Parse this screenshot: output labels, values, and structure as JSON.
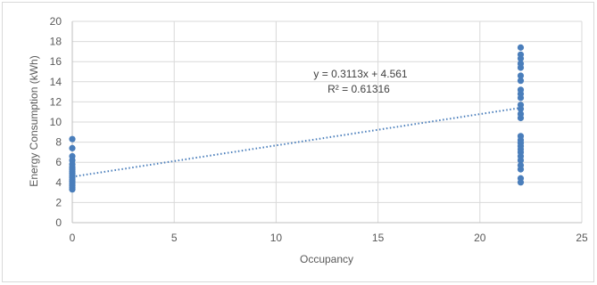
{
  "chart_data": {
    "type": "scatter",
    "title": "",
    "xlabel": "Occupancy",
    "ylabel": "Energy Consumption (kWh)",
    "xlim": [
      0,
      25
    ],
    "ylim": [
      0,
      20
    ],
    "x_ticks": [
      "0",
      "5",
      "10",
      "15",
      "20",
      "25"
    ],
    "y_ticks": [
      "0",
      "2",
      "4",
      "6",
      "8",
      "10",
      "12",
      "14",
      "16",
      "18",
      "20"
    ],
    "grid": true,
    "legend": "none",
    "series": [
      {
        "marker_color": "#4a7ebb",
        "points": [
          [
            0,
            3.3
          ],
          [
            0,
            3.5
          ],
          [
            0,
            3.7
          ],
          [
            0,
            3.9
          ],
          [
            0,
            4.1
          ],
          [
            0,
            4.3
          ],
          [
            0,
            4.5
          ],
          [
            0,
            4.7
          ],
          [
            0,
            4.9
          ],
          [
            0,
            5.1
          ],
          [
            0,
            5.3
          ],
          [
            0,
            5.5
          ],
          [
            0,
            5.8
          ],
          [
            0,
            6.2
          ],
          [
            0,
            6.6
          ],
          [
            0,
            7.4
          ],
          [
            0,
            8.3
          ],
          [
            22,
            4.0
          ],
          [
            22,
            4.4
          ],
          [
            22,
            5.3
          ],
          [
            22,
            5.7
          ],
          [
            22,
            6.2
          ],
          [
            22,
            6.6
          ],
          [
            22,
            7.0
          ],
          [
            22,
            7.3
          ],
          [
            22,
            7.6
          ],
          [
            22,
            7.9
          ],
          [
            22,
            8.2
          ],
          [
            22,
            8.6
          ],
          [
            22,
            10.4
          ],
          [
            22,
            10.8
          ],
          [
            22,
            11.3
          ],
          [
            22,
            11.7
          ],
          [
            22,
            12.4
          ],
          [
            22,
            12.8
          ],
          [
            22,
            13.2
          ],
          [
            22,
            14.1
          ],
          [
            22,
            14.6
          ],
          [
            22,
            15.4
          ],
          [
            22,
            15.8
          ],
          [
            22,
            16.3
          ],
          [
            22,
            16.7
          ],
          [
            22,
            17.4
          ]
        ]
      }
    ],
    "trendline": {
      "type": "linear",
      "slope": 0.3113,
      "intercept": 4.561,
      "color": "#4a7ebb",
      "equation": "y = 0.3113x + 4.561",
      "r_squared": "R² = 0.61316"
    }
  }
}
